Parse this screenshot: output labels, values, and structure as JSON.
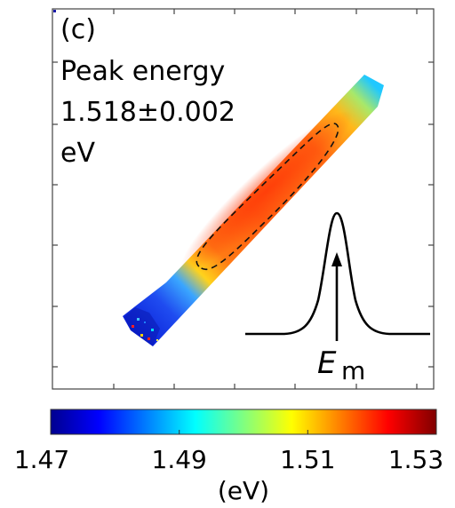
{
  "panel": {
    "label": "(c)",
    "title": "Peak energy",
    "value": "1.518±0.002",
    "unit": "eV"
  },
  "inset": {
    "symbol": "E",
    "subscript": "m"
  },
  "colorbar": {
    "ticks": [
      "1.47",
      "1.49",
      "1.51",
      "1.53"
    ],
    "range": [
      1.47,
      1.53
    ],
    "label": "(eV)",
    "colormap": "jet"
  },
  "colors": {
    "low": "#00008f",
    "mid": "#80ff80",
    "high": "#800000",
    "map_core": "#ff5a10"
  }
}
